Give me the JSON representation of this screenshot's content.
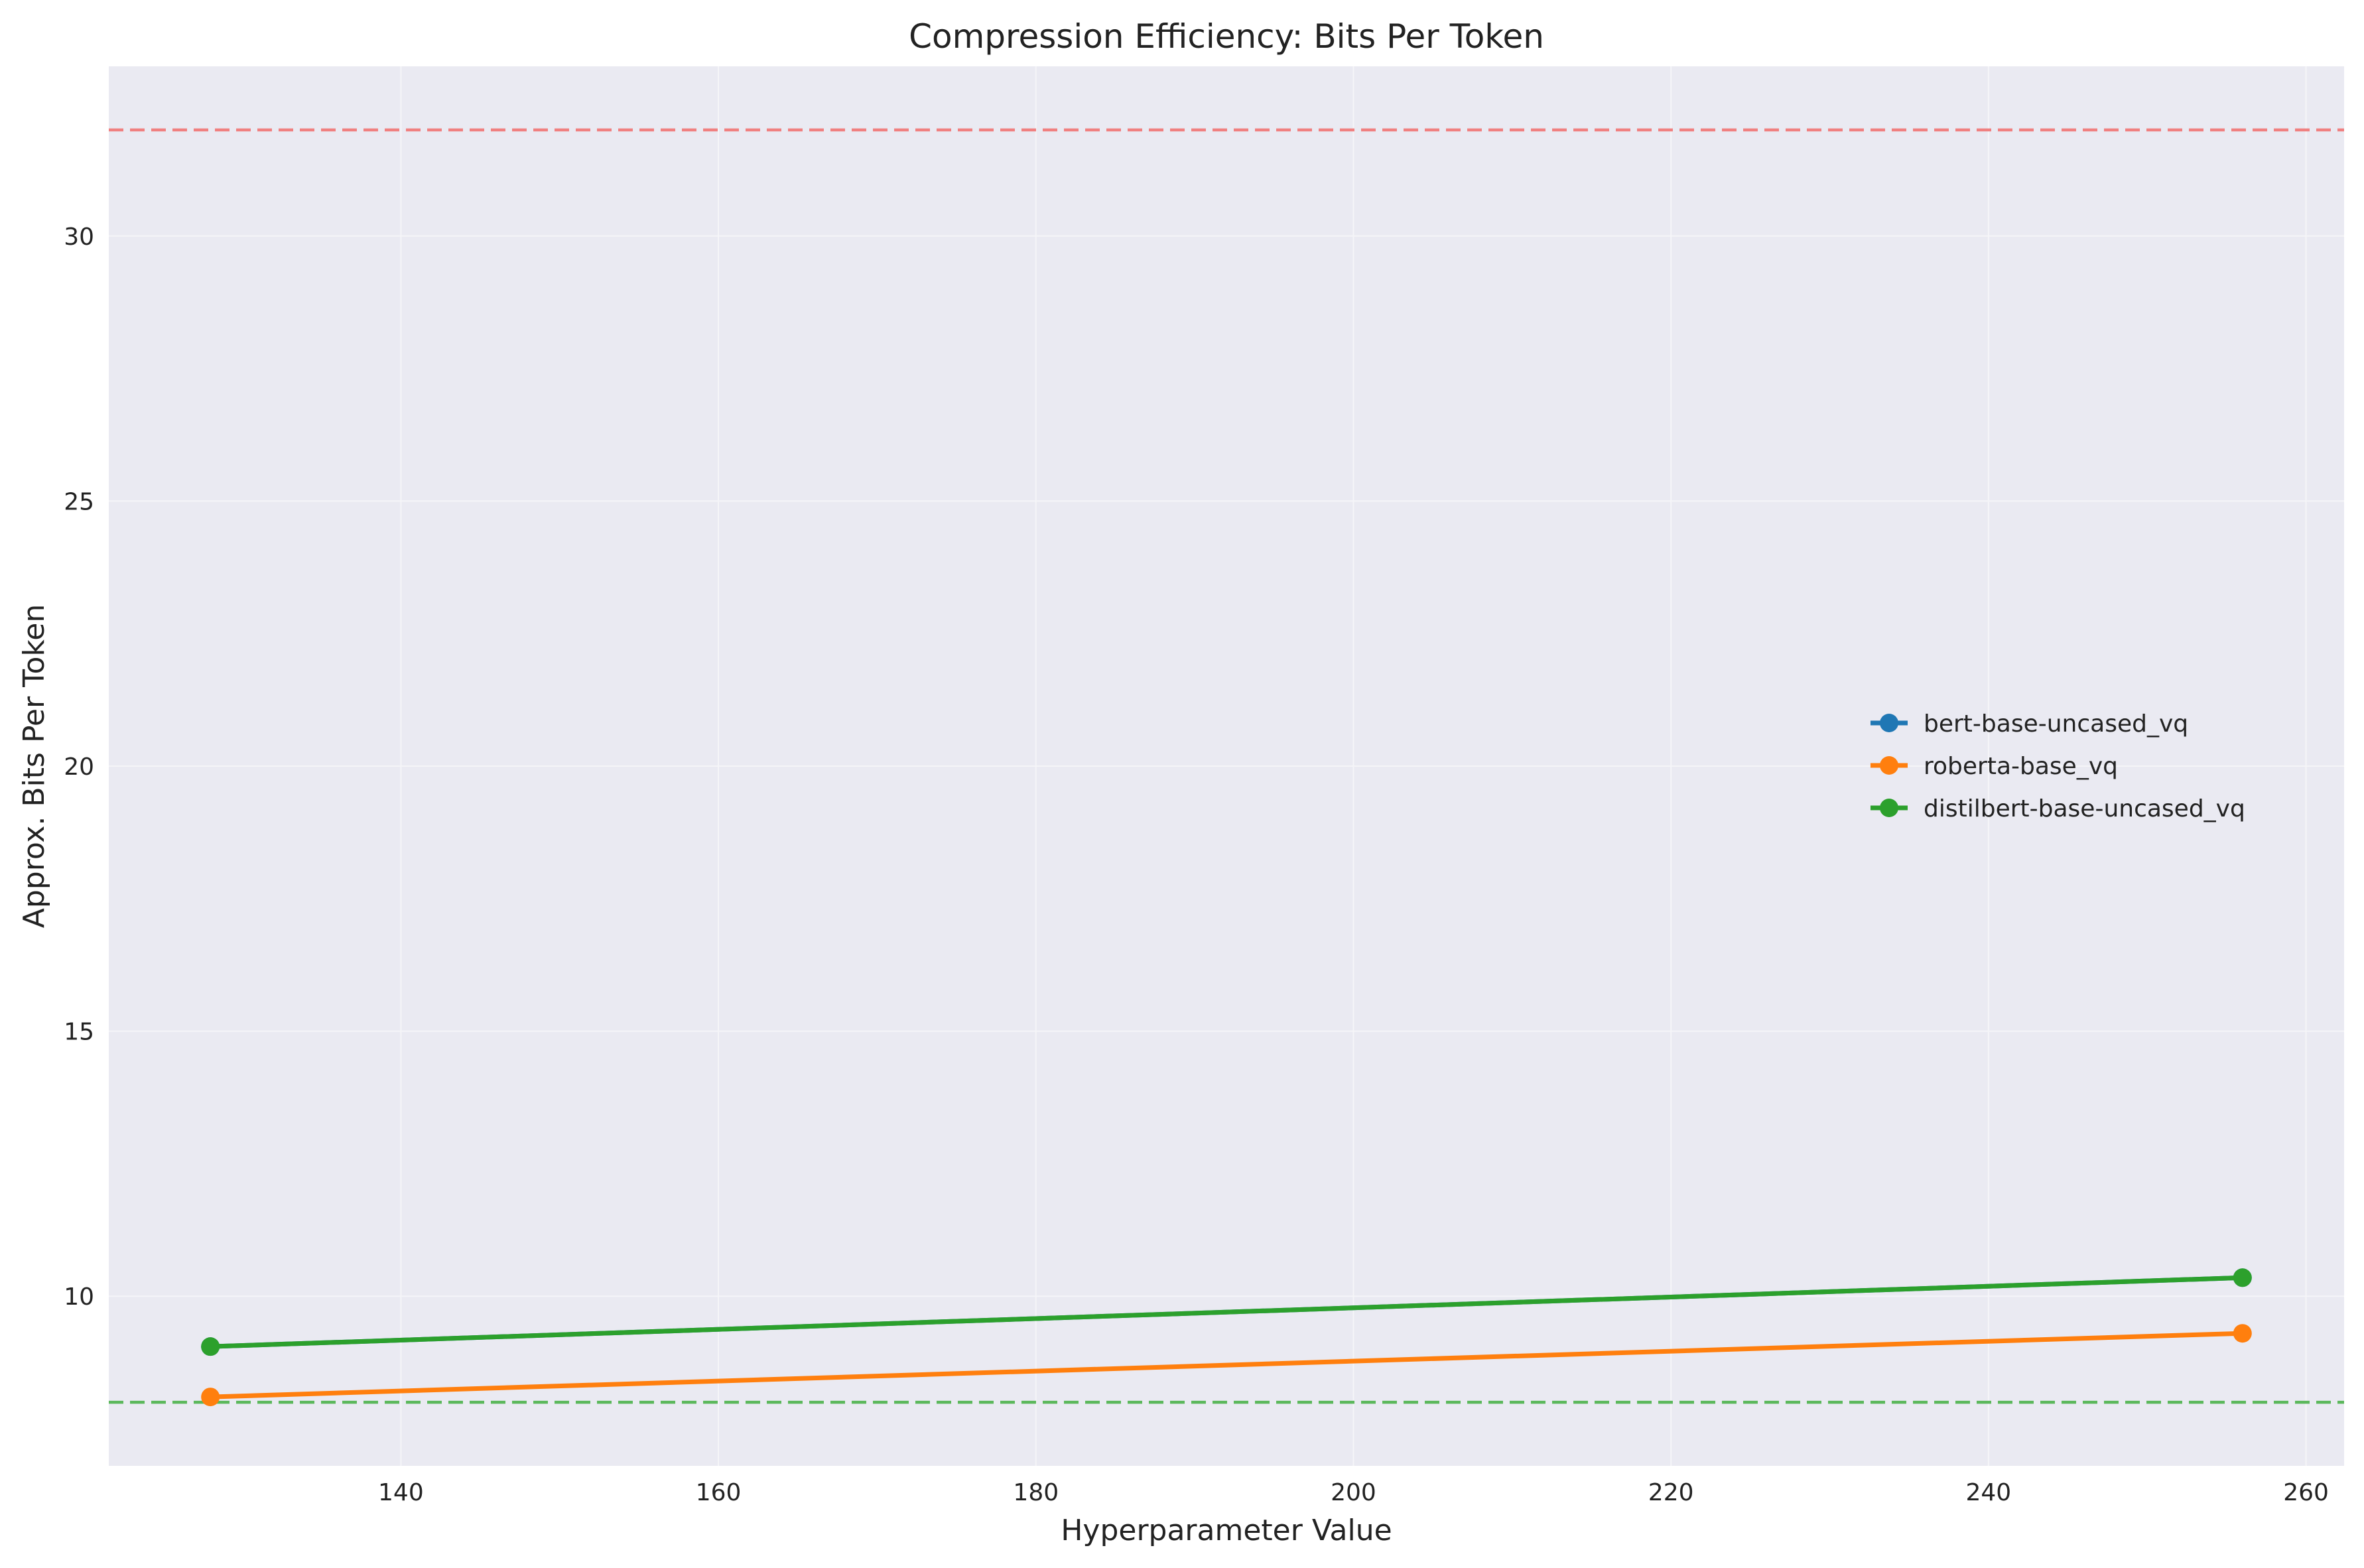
{
  "chart_data": {
    "type": "line",
    "title": "Compression Efficiency: Bits Per Token",
    "xlabel": "Hyperparameter Value",
    "ylabel": "Approx. Bits Per Token",
    "xlim": [
      121.6,
      262.4
    ],
    "ylim": [
      6.8,
      33.2
    ],
    "xticks": [
      140,
      160,
      180,
      200,
      220,
      240,
      260
    ],
    "yticks": [
      10,
      15,
      20,
      25,
      30
    ],
    "grid": true,
    "legend_position": "center-right",
    "series": [
      {
        "name": "bert-base-uncased_vq",
        "color": "#1f77b4",
        "x": [
          128,
          256
        ],
        "y": [
          9.05,
          10.35
        ]
      },
      {
        "name": "roberta-base_vq",
        "color": "#ff7f0e",
        "x": [
          128,
          256
        ],
        "y": [
          8.1,
          9.3
        ]
      },
      {
        "name": "distilbert-base-uncased_vq",
        "color": "#2ca02c",
        "x": [
          128,
          256
        ],
        "y": [
          9.05,
          10.35
        ]
      }
    ],
    "reference_lines": [
      {
        "y": 32,
        "color": "#f08080",
        "style": "dashed"
      },
      {
        "y": 8,
        "color": "#5cb85c",
        "style": "dashed"
      }
    ]
  }
}
